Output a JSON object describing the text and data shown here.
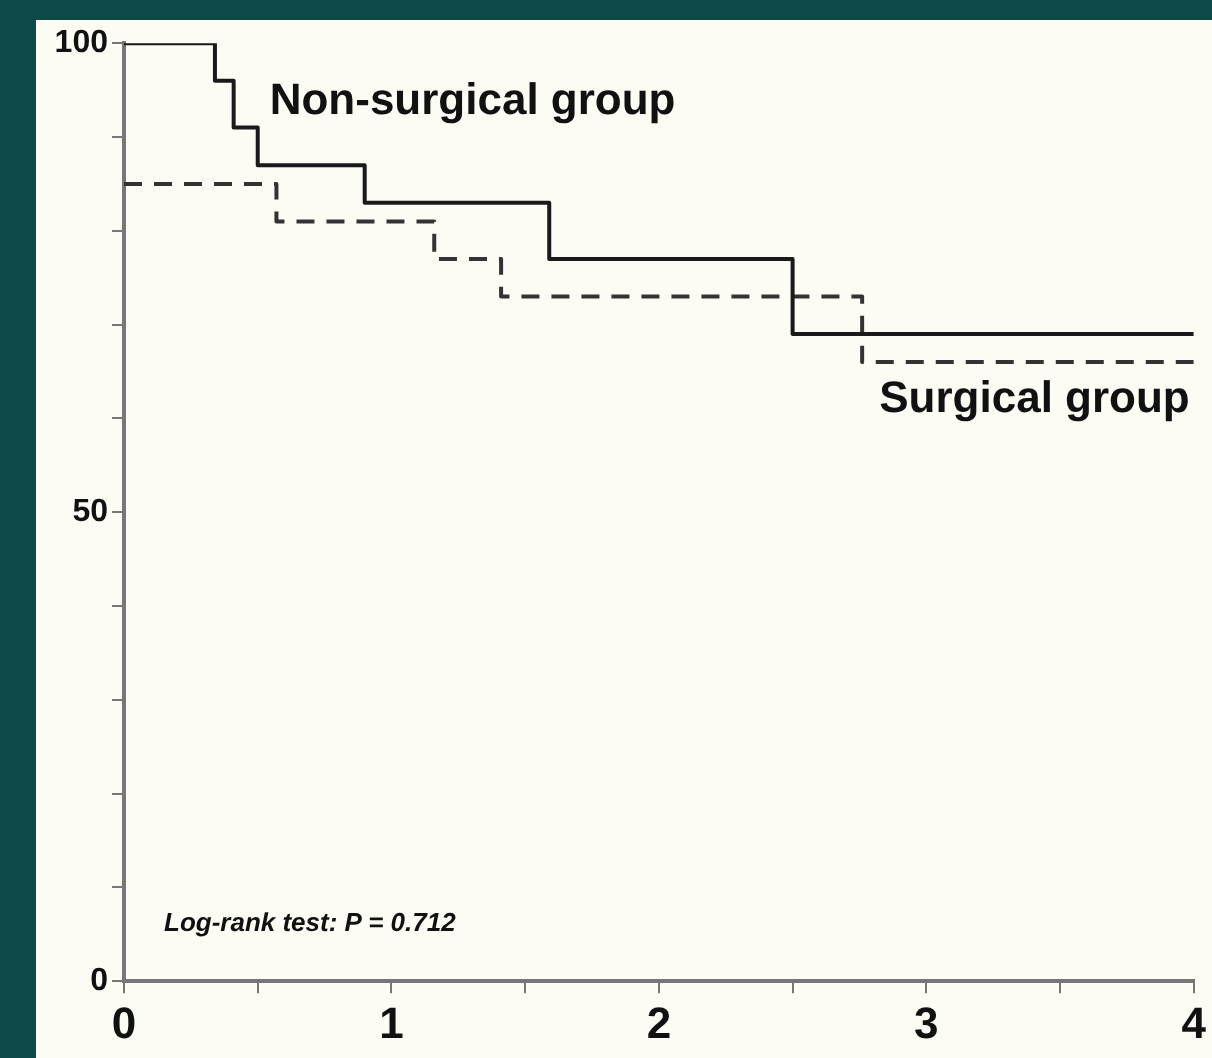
{
  "chart_data": {
    "type": "step",
    "xlim": [
      0,
      4
    ],
    "ylim": [
      0,
      100
    ],
    "xticks": [
      0,
      {
        "value": 0.5,
        "label": null
      },
      1,
      {
        "value": 1.5,
        "label": null
      },
      2,
      {
        "value": 2.5,
        "label": null
      },
      3,
      {
        "value": 3.5,
        "label": null
      },
      4
    ],
    "yticks": [
      0,
      {
        "value": 10,
        "label": null
      },
      {
        "value": 20,
        "label": null
      },
      {
        "value": 30,
        "label": null
      },
      {
        "value": 40,
        "label": null
      },
      50,
      {
        "value": 60,
        "label": null
      },
      {
        "value": 70,
        "label": null
      },
      {
        "value": 80,
        "label": null
      },
      {
        "value": 90,
        "label": null
      },
      100
    ],
    "grid": false,
    "legend": false,
    "marker": "none",
    "series": [
      {
        "name": "Non-surgical group",
        "color": "#1a1a1a",
        "line_style": "solid",
        "x": [
          0,
          0.34,
          0.41,
          0.5,
          0.9,
          1.59,
          2.5,
          4
        ],
        "values": [
          100,
          96,
          91,
          87,
          83,
          77,
          69,
          69
        ]
      },
      {
        "name": "Surgical group",
        "color": "#333333",
        "line_style": "dashed",
        "x": [
          0,
          0.57,
          1.16,
          1.41,
          2.76,
          4
        ],
        "values": [
          85,
          81,
          77,
          73,
          66,
          66
        ]
      }
    ],
    "annotations": [
      "Log-rank test: P = 0.712"
    ]
  }
}
